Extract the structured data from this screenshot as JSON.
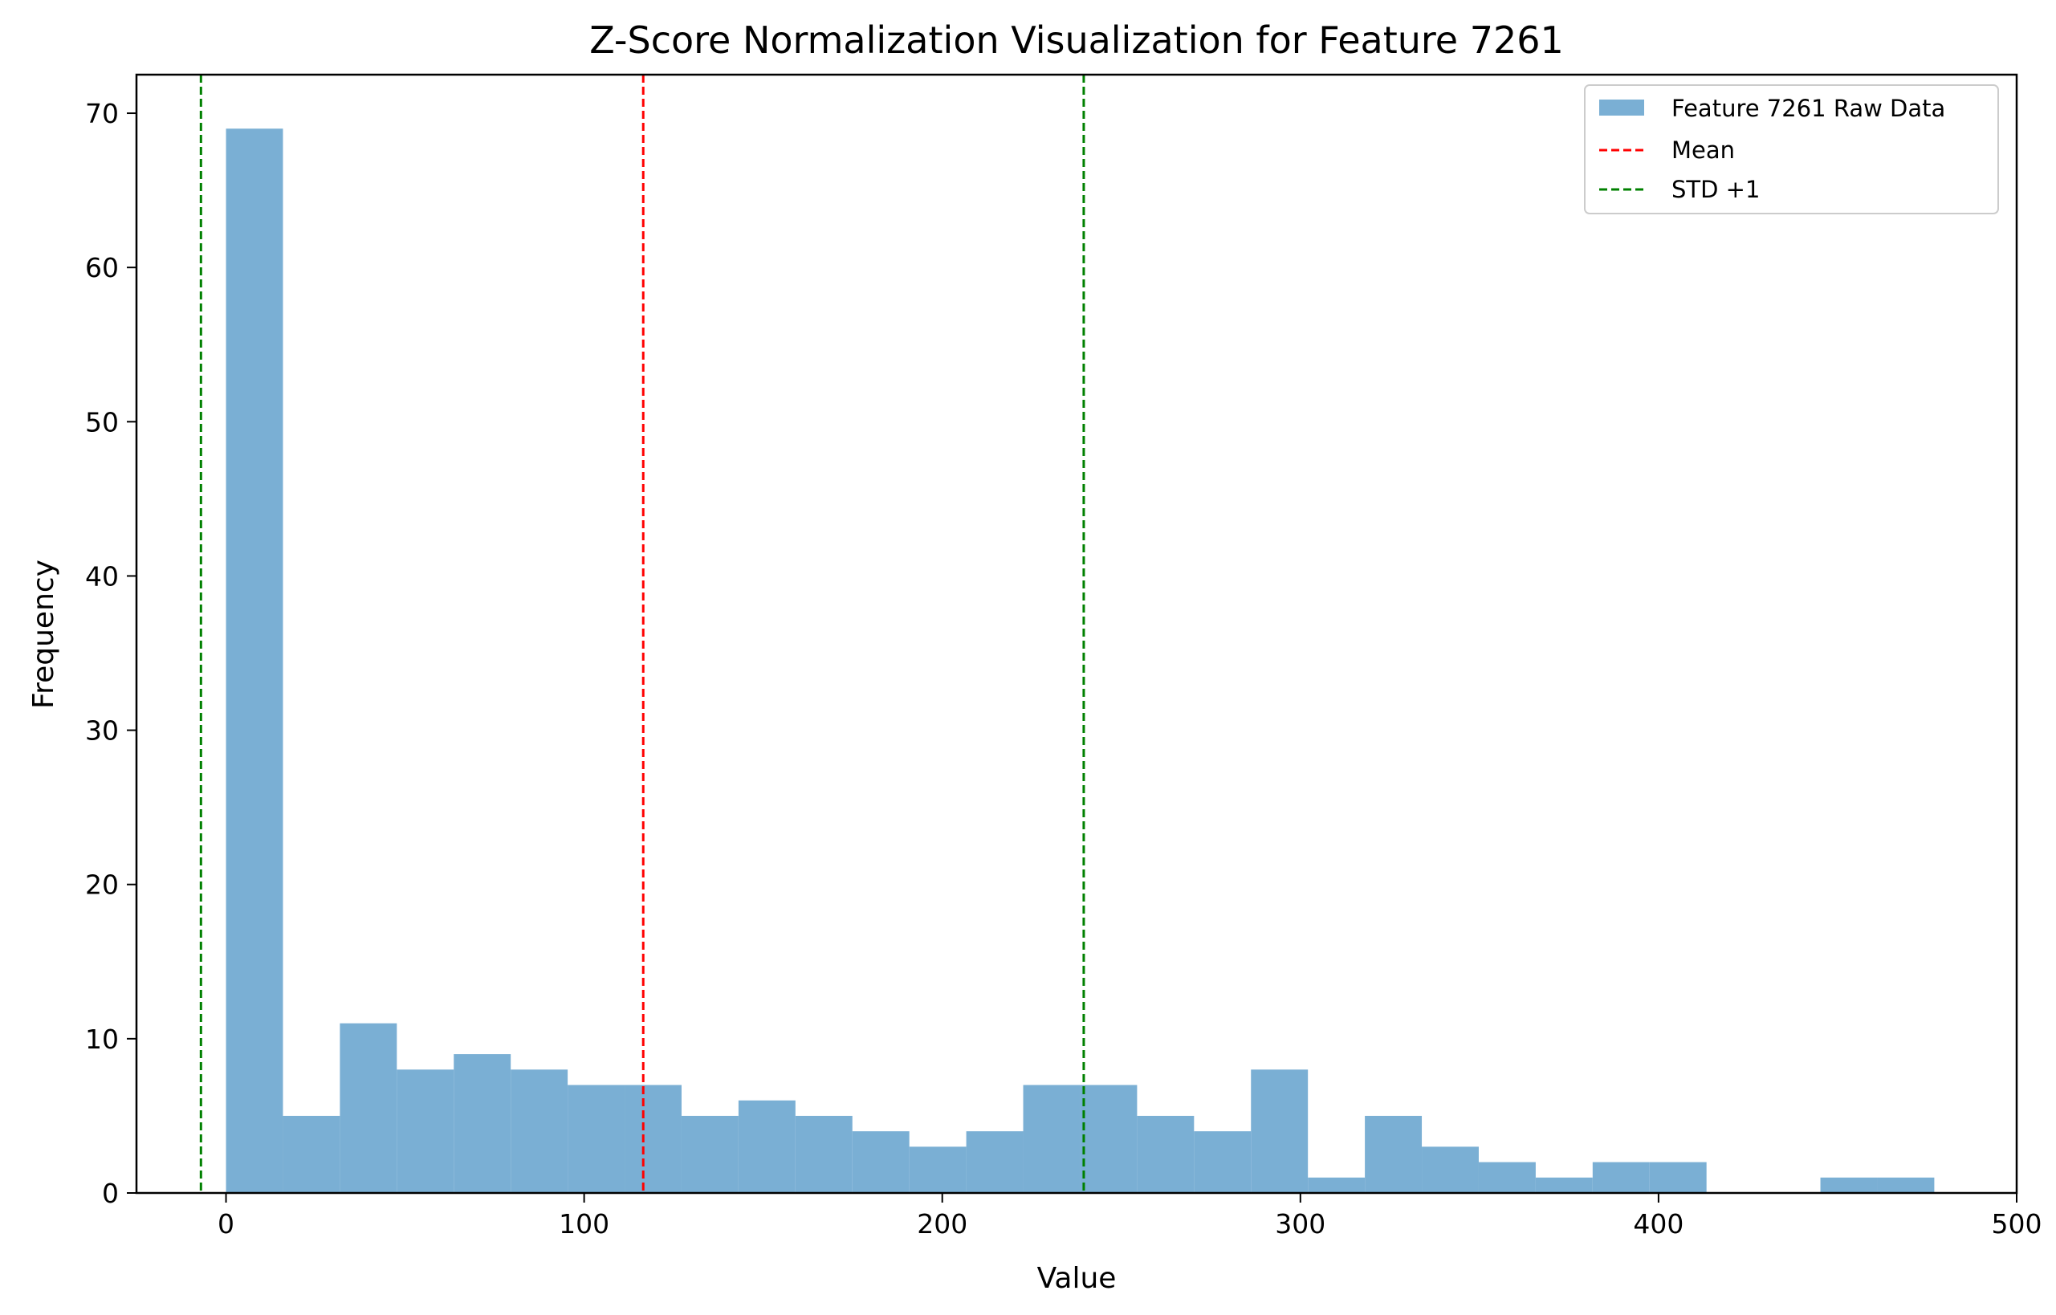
{
  "chart_data": {
    "type": "bar",
    "title": "Z-Score Normalization Visualization for Feature 7261",
    "xlabel": "Value",
    "ylabel": "Frequency",
    "xlim": [
      -25,
      500
    ],
    "ylim": [
      0,
      72.5
    ],
    "xticks": [
      0,
      100,
      200,
      300,
      400,
      500
    ],
    "yticks": [
      0,
      10,
      20,
      30,
      40,
      50,
      60,
      70
    ],
    "grid": false,
    "legend_position": "top-right",
    "bar_color": "#7aafd4",
    "bin_edges": [
      0,
      15.9,
      31.8,
      47.7,
      63.6,
      79.5,
      95.4,
      111.3,
      127.2,
      143.1,
      159,
      174.9,
      190.8,
      206.7,
      222.6,
      238.5,
      254.4,
      270.3,
      286.2,
      302.1,
      318,
      333.9,
      349.8,
      365.7,
      381.6,
      397.5,
      413.4,
      429.3,
      445.2,
      461.1,
      477
    ],
    "counts": [
      69,
      5,
      11,
      8,
      9,
      8,
      7,
      7,
      5,
      6,
      5,
      4,
      3,
      4,
      7,
      7,
      5,
      4,
      8,
      1,
      5,
      3,
      2,
      1,
      2,
      2,
      0,
      0,
      1,
      1
    ],
    "series": [
      {
        "name": "Feature 7261 Raw Data",
        "kind": "histogram",
        "color": "#7aafd4"
      },
      {
        "name": "Mean",
        "kind": "vline",
        "x": 116.5,
        "color": "#ff0000"
      },
      {
        "name": "STD +1",
        "kind": "vline",
        "x": 239.5,
        "color": "#008000"
      }
    ],
    "extra_lines": [
      {
        "kind": "vline",
        "x": -7,
        "color": "#008000"
      }
    ]
  }
}
